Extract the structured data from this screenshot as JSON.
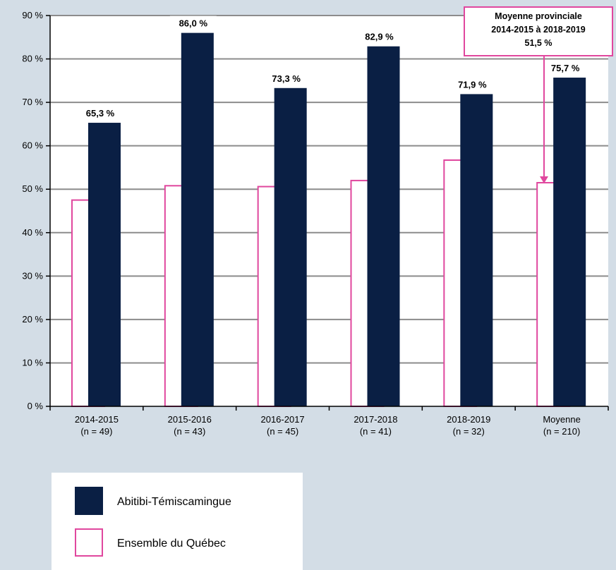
{
  "chart_data": {
    "type": "bar",
    "categories": [
      "2014-2015",
      "2015-2016",
      "2016-2017",
      "2017-2018",
      "2018-2019",
      "Moyenne"
    ],
    "category_n": [
      "(n = 49)",
      "(n = 43)",
      "(n = 45)",
      "(n = 41)",
      "(n = 32)",
      "(n = 210)"
    ],
    "series": [
      {
        "name": "Ensemble du Québec",
        "values": [
          47.5,
          50.8,
          50.6,
          52.0,
          56.7,
          51.5
        ],
        "color": "#ffffff",
        "border_color": "#e0479e"
      },
      {
        "name": "Abitibi-Témiscamingue",
        "values": [
          65.3,
          86.0,
          73.3,
          82.9,
          71.9,
          75.7
        ],
        "color": "#0a1f44",
        "data_labels": [
          "65,3 %",
          "86,0 %",
          "73,3 %",
          "82,9 %",
          "71,9 %",
          "75,7 %"
        ]
      }
    ],
    "ylim": [
      0,
      90
    ],
    "yticks": [
      0,
      10,
      20,
      30,
      40,
      50,
      60,
      70,
      80,
      90
    ],
    "ytick_labels": [
      "0 %",
      "10 %",
      "20 %",
      "30 %",
      "40 %",
      "50 %",
      "60 %",
      "70 %",
      "80 %",
      "90 %"
    ],
    "grid": true,
    "legend_position": "bottom-left",
    "annotation": {
      "lines": [
        "Moyenne provinciale",
        "2014-2015 à 2018-2019",
        "51,5 %"
      ],
      "border_color": "#e0479e",
      "target_category": "Moyenne"
    }
  },
  "legend": [
    {
      "label": "Abitibi-Témiscamingue",
      "swatch": "filled"
    },
    {
      "label": "Ensemble du Québec",
      "swatch": "outline"
    }
  ]
}
